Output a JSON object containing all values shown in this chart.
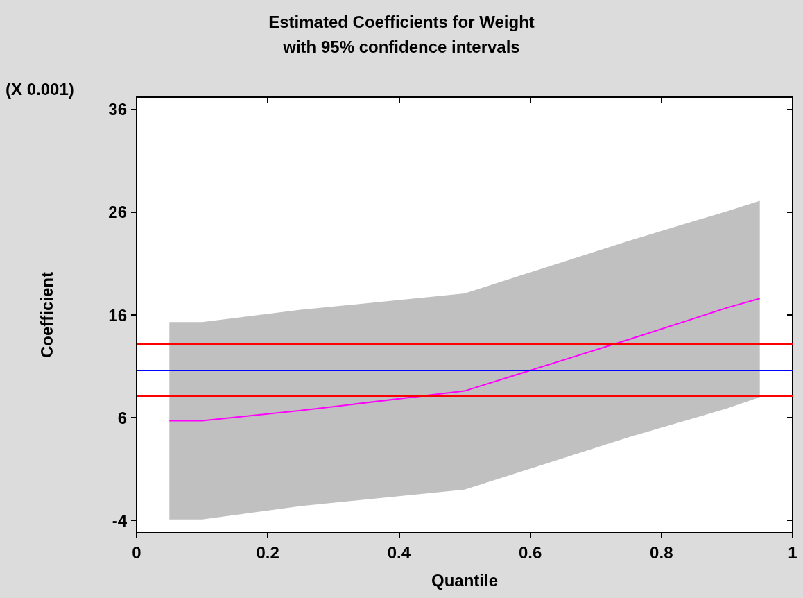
{
  "chart_data": {
    "type": "line",
    "title": "Estimated Coefficients for Weight",
    "subtitle": "with 95% confidence intervals",
    "xlabel": "Quantile",
    "ylabel": "Coefficient",
    "annotations": [
      "(X 0.001)"
    ],
    "x": [
      0.05,
      0.1,
      0.25,
      0.5,
      0.75,
      0.9,
      0.95
    ],
    "series": [
      {
        "color": "#ff00ff",
        "values": [
          5.7,
          5.7,
          6.7,
          8.6,
          13.6,
          16.7,
          17.6
        ],
        "lower": [
          -3.9,
          -3.9,
          -2.6,
          -1.0,
          4.1,
          6.9,
          8.0
        ],
        "upper": [
          15.3,
          15.3,
          16.5,
          18.1,
          23.2,
          26.1,
          27.1
        ]
      }
    ],
    "ref_lines": [
      {
        "axis": "y",
        "value": 13.2,
        "color": "#ff0000",
        "line_style": "solid"
      },
      {
        "axis": "y",
        "value": 10.6,
        "color": "#0000ff",
        "line_style": "solid"
      },
      {
        "axis": "y",
        "value": 8.1,
        "color": "#ff0000",
        "line_style": "solid"
      }
    ],
    "xlim": [
      0,
      1
    ],
    "xticks": [
      0,
      0.2,
      0.4,
      0.6,
      0.8,
      1
    ],
    "ylim": [
      -5.2,
      37.2
    ],
    "yticks": [
      -4,
      6,
      16,
      26,
      36
    ],
    "grid": false,
    "marker": "none",
    "line_style": "solid"
  }
}
